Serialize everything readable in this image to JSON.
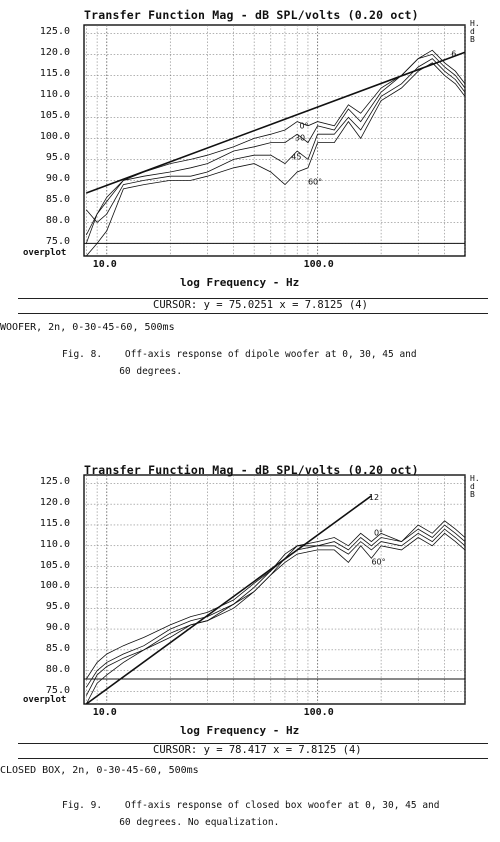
{
  "chart_data": [
    {
      "type": "line",
      "title": "Transfer Function Mag - dB SPL/volts (0.20 oct)",
      "side_label": "H.dB",
      "xlabel": "log Frequency - Hz",
      "x_scale": "log",
      "xlim": [
        7.8,
        500
      ],
      "ylim": [
        72,
        127
      ],
      "y_ticks": [
        "125.0",
        "120.0",
        "115.0",
        "110.0",
        "105.0",
        "100.0",
        "95.0",
        "90.0",
        "85.0",
        "80.0",
        "75.0"
      ],
      "y_tick_values": [
        125,
        120,
        115,
        110,
        105,
        100,
        95,
        90,
        85,
        80,
        75
      ],
      "x_tick_labels": [
        "10.0",
        "100.0"
      ],
      "x_tick_values": [
        10,
        100
      ],
      "bottom_label": "overplot",
      "cursor_text": "CURSOR: y = 75.0251 x = 7.8125 (4)",
      "info_text": "WOOFER, 2n, 0-30-45-60, 500ms",
      "caption": "Fig. 8.    Off-axis response of dipole woofer at 0, 30, 45 and\n          60 degrees.",
      "annotations": [
        {
          "text": "0°",
          "x": 82,
          "y": 102.3
        },
        {
          "text": "30",
          "x": 78,
          "y": 99.5
        },
        {
          "text": "45",
          "x": 75,
          "y": 95.0
        },
        {
          "text": "60°",
          "x": 90,
          "y": 89.0
        },
        {
          "text": "6",
          "x": 430,
          "y": 119.5
        }
      ],
      "series": [
        {
          "x": [
            8,
            9,
            10,
            12,
            15,
            20,
            25,
            30,
            40,
            50,
            60,
            70,
            80,
            90,
            100,
            120,
            140,
            160,
            200,
            250,
            300,
            350,
            400,
            450,
            500
          ],
          "y": [
            75,
            82,
            86,
            90,
            92,
            94,
            95,
            96,
            98,
            100,
            101,
            102,
            104,
            103,
            104,
            103,
            108,
            106,
            112,
            115,
            119,
            121,
            118,
            116,
            113
          ]
        },
        {
          "x": [
            8,
            9,
            10,
            12,
            15,
            20,
            25,
            30,
            40,
            50,
            60,
            70,
            80,
            90,
            100,
            120,
            140,
            160,
            200,
            250,
            300,
            350,
            400,
            450,
            500
          ],
          "y": [
            77,
            82,
            85,
            90,
            91,
            92,
            93,
            94,
            97,
            98,
            99,
            99,
            101,
            99,
            103,
            102,
            107,
            104,
            111,
            115,
            119,
            120,
            117,
            115,
            112
          ]
        },
        {
          "x": [
            8,
            9,
            10,
            12,
            15,
            20,
            25,
            30,
            40,
            50,
            60,
            70,
            80,
            90,
            100,
            120,
            140,
            160,
            200,
            250,
            300,
            350,
            400,
            450,
            500
          ],
          "y": [
            83,
            80,
            82,
            89,
            90,
            91,
            91,
            92,
            95,
            96,
            96,
            94,
            97,
            95,
            101,
            101,
            105,
            102,
            110,
            113,
            117,
            119,
            116,
            114,
            111
          ]
        },
        {
          "x": [
            8,
            9,
            10,
            12,
            15,
            20,
            25,
            30,
            40,
            50,
            60,
            70,
            80,
            90,
            100,
            120,
            140,
            160,
            200,
            250,
            300,
            350,
            400,
            450,
            500
          ],
          "y": [
            72,
            75,
            78,
            88,
            89,
            90,
            90,
            91,
            93,
            94,
            92,
            89,
            92,
            93,
            99,
            99,
            104,
            100,
            109,
            112,
            116,
            118,
            115,
            113,
            110
          ]
        },
        {
          "x": [
            8,
            500
          ],
          "y": [
            87,
            120.5
          ]
        }
      ],
      "reference_line": 75
    },
    {
      "type": "line",
      "title": "Transfer Function Mag - dB SPL/volts (0.20 oct)",
      "side_label": "H.dB",
      "xlabel": "log Frequency - Hz",
      "x_scale": "log",
      "xlim": [
        7.8,
        500
      ],
      "ylim": [
        72,
        127
      ],
      "y_ticks": [
        "125.0",
        "120.0",
        "115.0",
        "110.0",
        "105.0",
        "100.0",
        "95.0",
        "90.0",
        "85.0",
        "80.0",
        "75.0"
      ],
      "y_tick_values": [
        125,
        120,
        115,
        110,
        105,
        100,
        95,
        90,
        85,
        80,
        75
      ],
      "x_tick_labels": [
        "10.0",
        "100.0"
      ],
      "x_tick_values": [
        10,
        100
      ],
      "bottom_label": "overplot",
      "cursor_text": "CURSOR: y = 78.417 x = 7.8125 (4)",
      "info_text": "CLOSED BOX, 2n, 0-30-45-60, 500ms",
      "caption": "Fig. 9.    Off-axis response of closed box woofer at 0, 30, 45 and\n          60 degrees. No equalization.",
      "annotations": [
        {
          "text": "12",
          "x": 175,
          "y": 121
        },
        {
          "text": "0°",
          "x": 185,
          "y": 112.5
        },
        {
          "text": "60°",
          "x": 180,
          "y": 105.5
        }
      ],
      "series": [
        {
          "x": [
            8,
            9,
            10,
            12,
            15,
            20,
            25,
            30,
            40,
            50,
            60,
            70,
            80,
            100,
            120,
            140,
            160,
            180,
            200,
            250,
            300,
            350,
            400,
            450,
            500
          ],
          "y": [
            78,
            82,
            84,
            86,
            88,
            91,
            93,
            94,
            97,
            101,
            104,
            108,
            110,
            111,
            112,
            110,
            113,
            111,
            113,
            111,
            115,
            113,
            116,
            114,
            112
          ]
        },
        {
          "x": [
            8,
            9,
            10,
            12,
            15,
            20,
            25,
            30,
            40,
            50,
            60,
            70,
            80,
            100,
            120,
            140,
            160,
            180,
            200,
            250,
            300,
            350,
            400,
            450,
            500
          ],
          "y": [
            76,
            80,
            82,
            84,
            86,
            90,
            92,
            93,
            96,
            100,
            104,
            107,
            110,
            110,
            111,
            109,
            112,
            110,
            112,
            111,
            114,
            112,
            115,
            113,
            111
          ]
        },
        {
          "x": [
            8,
            9,
            10,
            12,
            15,
            20,
            25,
            30,
            40,
            50,
            60,
            70,
            80,
            100,
            120,
            140,
            160,
            180,
            200,
            250,
            300,
            350,
            400,
            450,
            500
          ],
          "y": [
            74,
            79,
            81,
            83,
            85,
            89,
            91,
            92,
            96,
            99,
            103,
            107,
            109,
            110,
            110,
            108,
            111,
            109,
            111,
            110,
            113,
            111,
            114,
            112,
            110
          ]
        },
        {
          "x": [
            8,
            9,
            10,
            12,
            15,
            20,
            25,
            30,
            40,
            50,
            60,
            70,
            80,
            100,
            120,
            140,
            160,
            180,
            200,
            250,
            300,
            350,
            400,
            450,
            500
          ],
          "y": [
            72,
            77,
            79,
            82,
            85,
            88,
            91,
            92,
            95,
            99,
            103,
            106,
            108,
            109,
            109,
            106,
            110,
            107,
            110,
            109,
            112,
            110,
            113,
            111,
            109
          ]
        },
        {
          "x": [
            8,
            180
          ],
          "y": [
            72,
            122
          ]
        }
      ],
      "reference_line": 78
    }
  ]
}
